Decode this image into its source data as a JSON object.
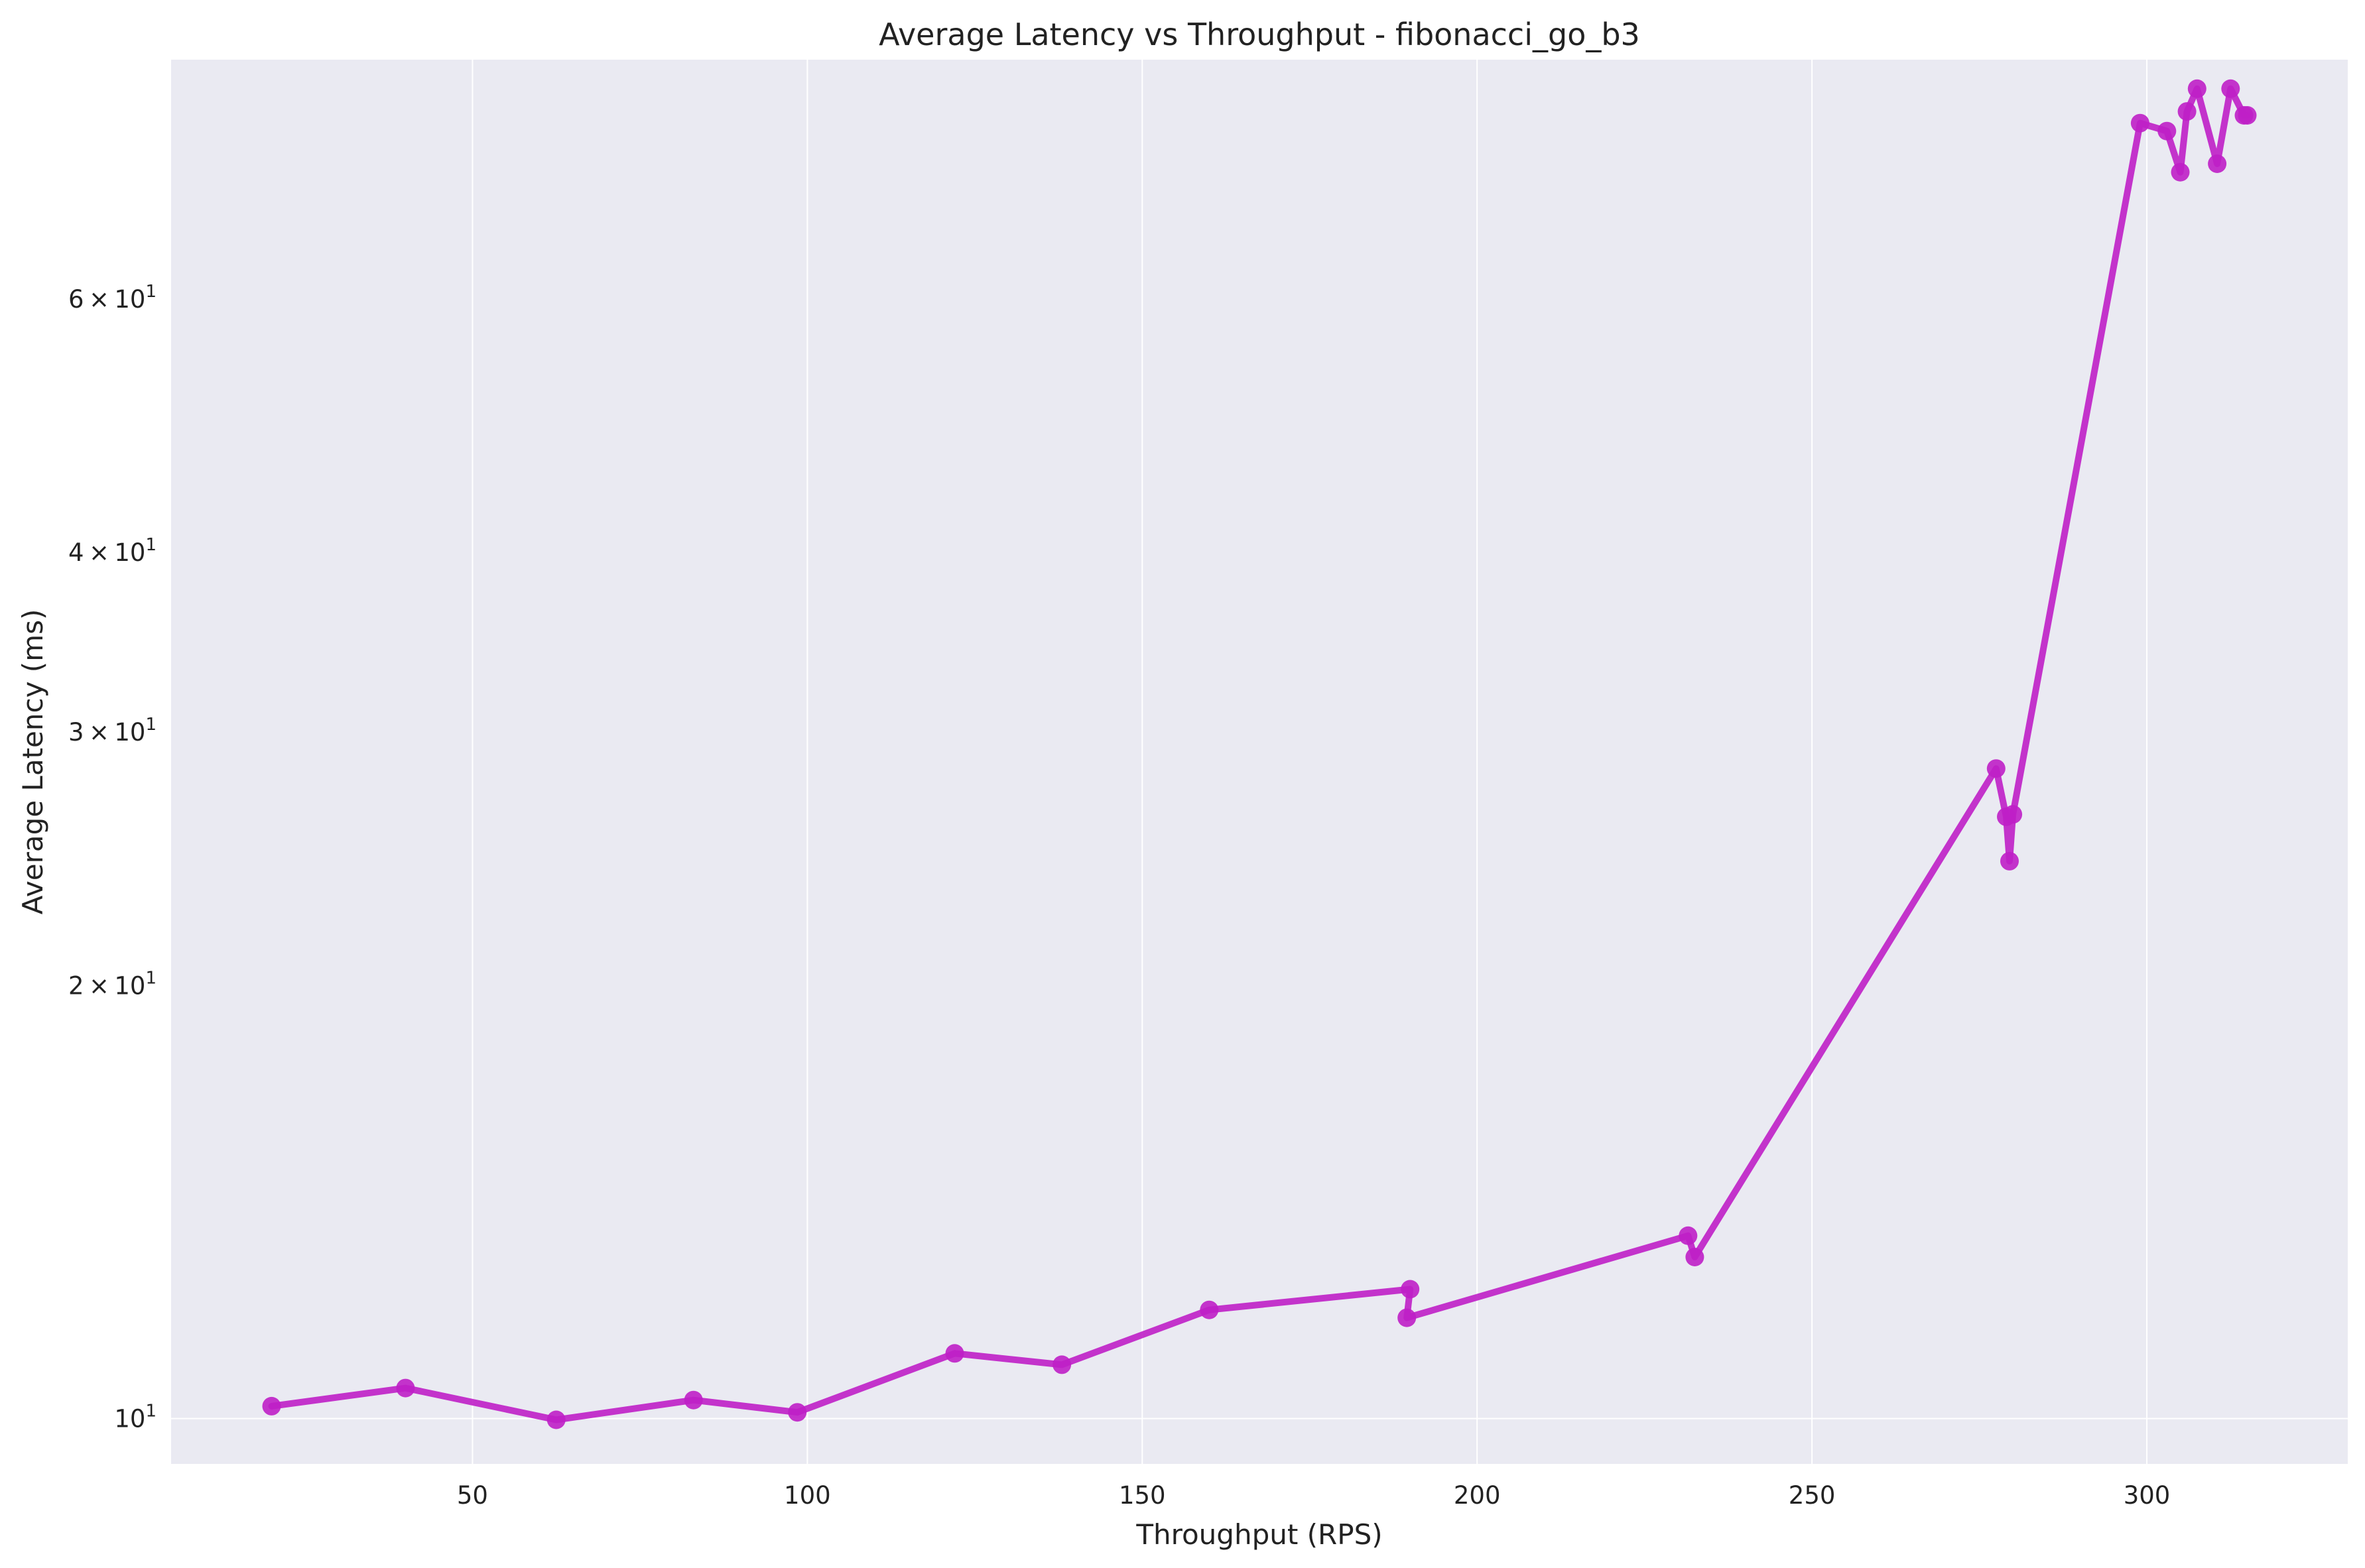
{
  "chart_data": {
    "type": "line",
    "title": "Average Latency vs Throughput - fibonacci_go_b3",
    "xlabel": "Throughput (RPS)",
    "ylabel": "Average Latency (ms)",
    "xlim": [
      5,
      330
    ],
    "ylim": [
      9.3,
      88
    ],
    "yscale": "log",
    "grid": true,
    "x_ticks": [
      50,
      100,
      150,
      200,
      250,
      300
    ],
    "y_ticks": [
      {
        "value": 10,
        "mantissa": "",
        "base": "10",
        "exp": "1"
      },
      {
        "value": 20,
        "mantissa": "2",
        "base": "10",
        "exp": "1"
      },
      {
        "value": 30,
        "mantissa": "3",
        "base": "10",
        "exp": "1"
      },
      {
        "value": 40,
        "mantissa": "4",
        "base": "10",
        "exp": "1"
      },
      {
        "value": 60,
        "mantissa": "6",
        "base": "10",
        "exp": "1"
      }
    ],
    "y_times_symbol": "×",
    "colors": {
      "line": "#bf1fc6",
      "marker": "#bf1fc6",
      "background": "#eaeaf2",
      "grid": "#ffffff"
    },
    "series": [
      {
        "x": [
          20,
          40,
          62.5,
          83,
          98.5,
          122,
          138,
          160,
          190,
          189.5,
          231.5,
          232.5,
          277.5,
          279,
          279.5,
          280,
          299,
          303,
          305,
          306,
          307.5,
          310.5,
          312.5,
          314.5,
          315
        ],
        "y": [
          10.2,
          10.5,
          9.98,
          10.3,
          10.1,
          11.1,
          10.9,
          11.9,
          12.3,
          11.75,
          13.4,
          12.95,
          28.3,
          26.2,
          24.4,
          26.3,
          79.5,
          78.5,
          73.5,
          81,
          84,
          74.5,
          84,
          80.5,
          80.5
        ]
      }
    ]
  }
}
